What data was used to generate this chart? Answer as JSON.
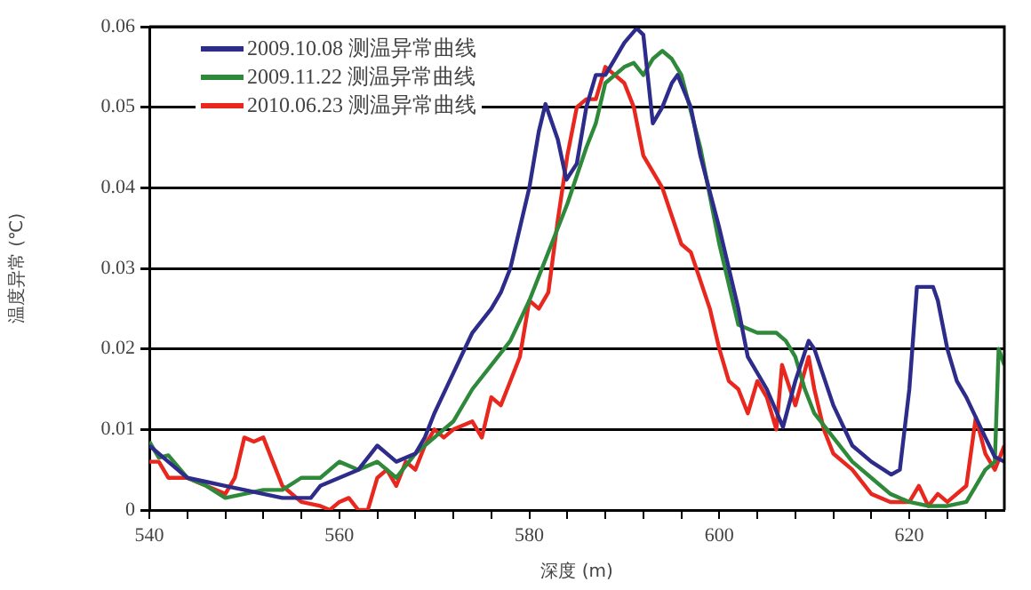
{
  "chart_data": {
    "type": "line",
    "xlabel": "深度 (m)",
    "ylabel": "温度异常 (℃)",
    "xlim": [
      540,
      630
    ],
    "ylim": [
      0,
      0.06
    ],
    "xticks": [
      540,
      {
        "value": 544,
        "label": null
      },
      {
        "value": 548,
        "label": null
      },
      {
        "value": 552,
        "label": null
      },
      {
        "value": 556,
        "label": null
      },
      560,
      {
        "value": 564,
        "label": null
      },
      {
        "value": 568,
        "label": null
      },
      {
        "value": 572,
        "label": null
      },
      {
        "value": 576,
        "label": null
      },
      580,
      {
        "value": 584,
        "label": null
      },
      {
        "value": 588,
        "label": null
      },
      {
        "value": 592,
        "label": null
      },
      {
        "value": 596,
        "label": null
      },
      600,
      {
        "value": 604,
        "label": null
      },
      {
        "value": 608,
        "label": null
      },
      {
        "value": 612,
        "label": null
      },
      {
        "value": 616,
        "label": null
      },
      620,
      {
        "value": 624,
        "label": null
      },
      {
        "value": 628,
        "label": null
      }
    ],
    "yticks": [
      0,
      0.01,
      0.02,
      0.03,
      0.04,
      0.05,
      0.06
    ],
    "grid": "y",
    "legend": "top left",
    "marker": "none",
    "line_style": "solid",
    "series": [
      {
        "name": "2009.10.08 测温异常曲线",
        "color": "#2e2c8a",
        "x": [
          540,
          542,
          544,
          546,
          548,
          550,
          552,
          554,
          556,
          557,
          558,
          560,
          562,
          564,
          566,
          568,
          569,
          570,
          572,
          574,
          576,
          577,
          578,
          579,
          580,
          581,
          581.7,
          583,
          583.9,
          585,
          586,
          587,
          588,
          589,
          590,
          591.3,
          592,
          593,
          594,
          595,
          595.6,
          597,
          598,
          600,
          602,
          603,
          605,
          606.7,
          608,
          609.4,
          610,
          612,
          614,
          616,
          618.1,
          619,
          620,
          620.8,
          622.5,
          623,
          624,
          625,
          626,
          628,
          629,
          630
        ],
        "values": [
          0.008,
          0.006,
          0.004,
          0.0035,
          0.003,
          0.0025,
          0.002,
          0.0015,
          0.0015,
          0.0015,
          0.003,
          0.004,
          0.005,
          0.008,
          0.006,
          0.007,
          0.009,
          0.012,
          0.017,
          0.022,
          0.025,
          0.027,
          0.03,
          0.035,
          0.04,
          0.047,
          0.0504,
          0.046,
          0.041,
          0.043,
          0.05,
          0.054,
          0.054,
          0.056,
          0.058,
          0.0598,
          0.059,
          0.048,
          0.05,
          0.053,
          0.054,
          0.05,
          0.044,
          0.035,
          0.025,
          0.019,
          0.015,
          0.0103,
          0.016,
          0.021,
          0.02,
          0.013,
          0.008,
          0.006,
          0.0044,
          0.005,
          0.015,
          0.0277,
          0.0277,
          0.026,
          0.02,
          0.016,
          0.014,
          0.009,
          0.0066,
          0.006
        ]
      },
      {
        "name": "2009.11.22 测温异常曲线",
        "color": "#2e8a3a",
        "x": [
          540,
          541,
          542,
          544,
          546,
          548,
          550,
          552,
          554,
          556,
          558,
          560,
          562,
          564,
          566,
          568,
          570,
          572,
          574,
          576,
          578,
          580,
          582,
          584,
          586,
          587,
          588,
          590,
          591,
          592,
          593,
          594,
          595,
          596,
          598,
          600,
          602,
          604,
          606,
          607,
          608,
          609,
          610,
          612,
          614,
          616,
          618,
          620,
          622,
          624,
          626,
          627,
          628,
          629,
          629.4,
          630
        ],
        "values": [
          0.0085,
          0.0065,
          0.0068,
          0.004,
          0.003,
          0.0015,
          0.002,
          0.0025,
          0.0025,
          0.004,
          0.004,
          0.006,
          0.005,
          0.006,
          0.004,
          0.007,
          0.009,
          0.011,
          0.015,
          0.018,
          0.021,
          0.026,
          0.032,
          0.038,
          0.045,
          0.048,
          0.053,
          0.055,
          0.0555,
          0.054,
          0.056,
          0.057,
          0.056,
          0.054,
          0.045,
          0.033,
          0.023,
          0.022,
          0.022,
          0.021,
          0.019,
          0.015,
          0.012,
          0.009,
          0.006,
          0.004,
          0.002,
          0.001,
          0.0005,
          0.0005,
          0.001,
          0.003,
          0.005,
          0.006,
          0.02,
          0.018
        ]
      },
      {
        "name": "2010.06.23 测温异常曲线",
        "color": "#e8281e",
        "x": [
          540,
          541,
          542,
          544,
          546,
          548,
          549,
          550,
          551,
          552,
          553,
          554,
          556,
          558,
          559,
          560,
          561,
          562,
          563,
          564,
          565,
          566,
          567,
          568,
          569,
          570,
          571,
          572,
          574,
          575,
          576,
          577,
          578,
          579,
          580,
          581,
          582,
          583,
          584,
          585,
          586,
          587,
          588,
          589,
          590,
          591,
          592,
          594,
          596,
          597,
          599,
          600,
          601,
          602,
          603,
          604,
          605,
          606,
          606.6,
          608,
          609.4,
          610,
          611,
          612,
          614,
          616,
          618,
          620,
          621,
          622,
          623,
          624,
          626,
          627,
          628,
          629,
          630
        ],
        "values": [
          0.006,
          0.006,
          0.004,
          0.004,
          0.003,
          0.002,
          0.004,
          0.009,
          0.0085,
          0.009,
          0.006,
          0.003,
          0.001,
          0.0005,
          0,
          0.001,
          0.0015,
          0,
          0,
          0.004,
          0.005,
          0.003,
          0.006,
          0.005,
          0.008,
          0.01,
          0.009,
          0.01,
          0.011,
          0.009,
          0.014,
          0.013,
          0.016,
          0.019,
          0.026,
          0.025,
          0.027,
          0.036,
          0.044,
          0.05,
          0.051,
          0.051,
          0.055,
          0.054,
          0.053,
          0.05,
          0.044,
          0.04,
          0.033,
          0.032,
          0.025,
          0.02,
          0.016,
          0.015,
          0.012,
          0.016,
          0.014,
          0.01,
          0.018,
          0.013,
          0.019,
          0.015,
          0.01,
          0.007,
          0.005,
          0.002,
          0.001,
          0.001,
          0.003,
          0.0005,
          0.002,
          0.001,
          0.003,
          0.0115,
          0.007,
          0.005,
          0.008
        ]
      }
    ]
  }
}
